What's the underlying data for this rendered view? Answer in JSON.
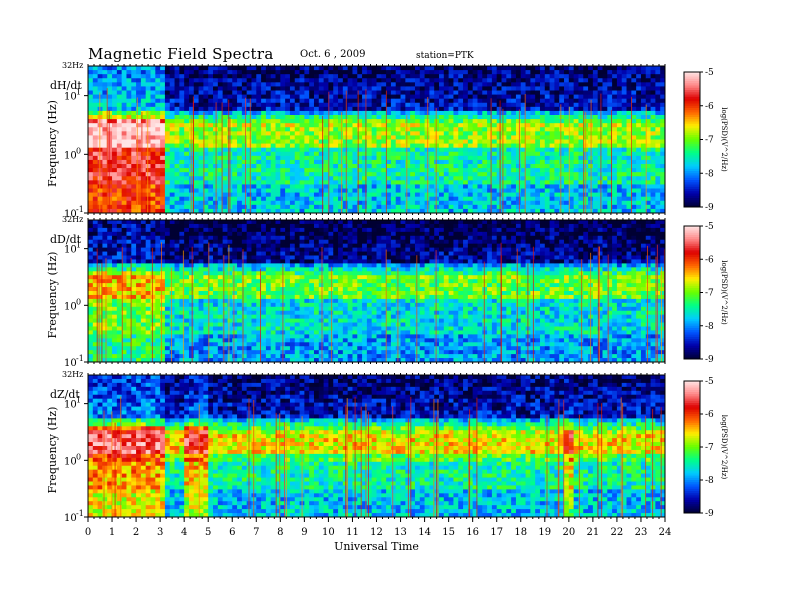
{
  "header": {
    "title": "Magnetic  Field  Spectra",
    "date": "Oct. 6  , 2009",
    "station": "station=PTK"
  },
  "chart_data": {
    "type": "heatmap",
    "xlabel": "Universal Time",
    "x_ticks": [
      "0",
      "1",
      "2",
      "3",
      "4",
      "5",
      "6",
      "7",
      "8",
      "9",
      "10",
      "11",
      "12",
      "13",
      "14",
      "15",
      "16",
      "17",
      "18",
      "19",
      "20",
      "21",
      "22",
      "23",
      "24"
    ],
    "xlim": [
      0,
      24
    ],
    "frequency_top_label": "32Hz",
    "y_scale": "log",
    "ylim": [
      0.1,
      32
    ],
    "y_ticks": [
      {
        "base": "10",
        "exp": "1",
        "value": 10
      },
      {
        "base": "10",
        "exp": "0",
        "value": 1
      },
      {
        "base": "10",
        "exp": "-1",
        "value": 0.1
      }
    ],
    "panels": [
      {
        "component": "dH/dt",
        "ylabel": "Frequency  (Hz)"
      },
      {
        "component": "dD/dt",
        "ylabel": "Frequency  (Hz)"
      },
      {
        "component": "dZ/dt",
        "ylabel": "Frequency  (Hz)"
      }
    ],
    "colorbar": {
      "label": "log(PSD)(V^2/Hz)",
      "ticks": [
        "-5",
        "-6",
        "-7",
        "-8",
        "-9"
      ],
      "range": [
        -9,
        -5
      ],
      "colors": [
        "#000033",
        "#0000aa",
        "#0055ff",
        "#00ccff",
        "#00ff88",
        "#66ff00",
        "#ffee00",
        "#ff6600",
        "#dd0000",
        "#ff8888",
        "#ffe6e6"
      ]
    }
  }
}
